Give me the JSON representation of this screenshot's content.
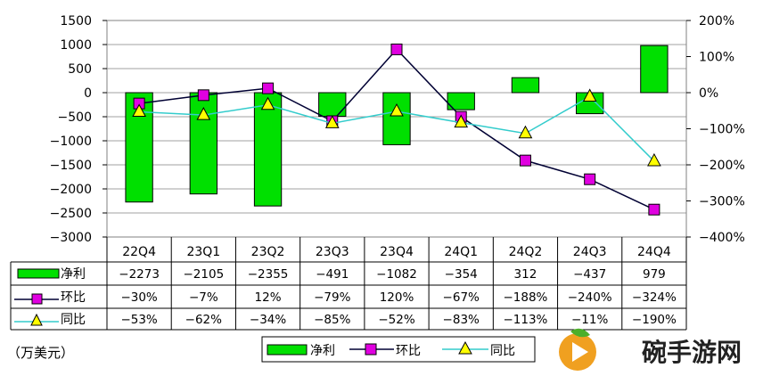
{
  "chart_data": {
    "type": "bar",
    "categories": [
      "22Q4",
      "23Q1",
      "23Q2",
      "23Q3",
      "23Q4",
      "24Q1",
      "24Q2",
      "24Q3",
      "24Q4"
    ],
    "series": [
      {
        "name": "净利",
        "kind": "bar",
        "axis": "left",
        "color": "#00e000",
        "values": [
          -2273,
          -2105,
          -2355,
          -491,
          -1082,
          -354,
          312,
          -437,
          979
        ],
        "labels": [
          "−2273",
          "−2105",
          "−2355",
          "−491",
          "−1082",
          "−354",
          "312",
          "−437",
          "979"
        ]
      },
      {
        "name": "环比",
        "kind": "line",
        "axis": "right",
        "color": "#000033",
        "marker": "square",
        "marker_color": "#e000e0",
        "values": [
          -30,
          -7,
          12,
          -79,
          120,
          -67,
          -188,
          -240,
          -324
        ],
        "labels": [
          "−30%",
          "−7%",
          "12%",
          "−79%",
          "120%",
          "−67%",
          "−188%",
          "−240%",
          "−324%"
        ]
      },
      {
        "name": "同比",
        "kind": "line",
        "axis": "right",
        "color": "#33cccc",
        "marker": "triangle",
        "marker_color": "#ffff00",
        "values": [
          -53,
          -62,
          -34,
          -85,
          -52,
          -83,
          -113,
          -11,
          -190
        ],
        "labels": [
          "−53%",
          "−62%",
          "−34%",
          "−85%",
          "−52%",
          "−83%",
          "−113%",
          "−11%",
          "−190%"
        ]
      }
    ],
    "y_left": {
      "min": -3000,
      "max": 1500,
      "step": 500,
      "ticks": [
        "1500",
        "1000",
        "500",
        "0",
        "−500",
        "−1000",
        "−1500",
        "−2000",
        "−2500",
        "−3000"
      ]
    },
    "y_right": {
      "min": -400,
      "max": 200,
      "step": 100,
      "ticks": [
        "200%",
        "100%",
        "0%",
        "−100%",
        "−200%",
        "−300%",
        "−400%"
      ]
    },
    "grid": true,
    "legend_position": "bottom",
    "data_table": true
  },
  "unit_label": "（万美元）",
  "watermark": "碗手游网"
}
